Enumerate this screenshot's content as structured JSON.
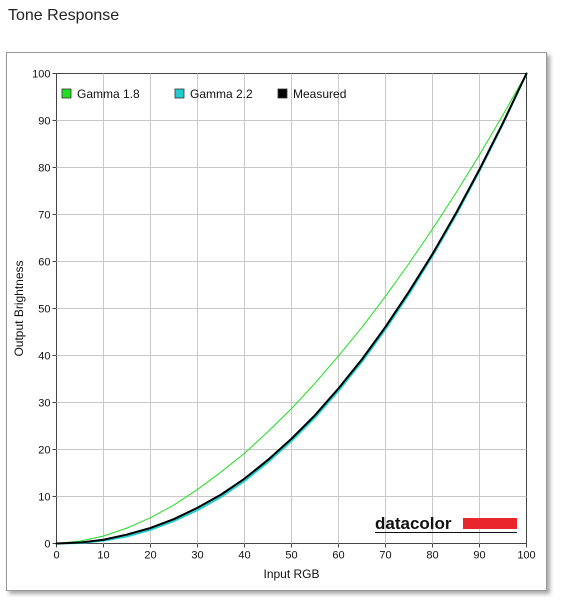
{
  "page": {
    "title": "Tone Response"
  },
  "brand": {
    "text": "datacolor",
    "bar_color": "#e8262c"
  },
  "chart_data": {
    "type": "line",
    "title": "",
    "xlabel": "Input RGB",
    "ylabel": "Output Brightness",
    "xlim": [
      0,
      100
    ],
    "ylim": [
      0,
      100
    ],
    "xticks": [
      0,
      10,
      20,
      30,
      40,
      50,
      60,
      70,
      80,
      90,
      100
    ],
    "yticks": [
      0,
      10,
      20,
      30,
      40,
      50,
      60,
      70,
      80,
      90,
      100
    ],
    "grid": true,
    "legend_position": "top-left",
    "x": [
      0,
      5,
      10,
      15,
      20,
      25,
      30,
      35,
      40,
      45,
      50,
      55,
      60,
      65,
      70,
      75,
      80,
      85,
      90,
      95,
      100
    ],
    "series": [
      {
        "name": "Gamma 1.8",
        "color": "#22dd22",
        "line_width": 1,
        "values": [
          0,
          0.5,
          1.6,
          3.3,
          5.5,
          8.2,
          11.5,
          15.2,
          19.2,
          23.8,
          28.7,
          34.1,
          39.9,
          46.0,
          52.6,
          59.6,
          66.9,
          74.6,
          82.7,
          91.2,
          100
        ]
      },
      {
        "name": "Gamma 2.2",
        "color": "#22cccc",
        "line_width": 2,
        "values": [
          0,
          0.1,
          0.6,
          1.5,
          2.9,
          4.8,
          7.1,
          9.9,
          13.3,
          17.3,
          21.8,
          26.8,
          32.5,
          38.7,
          45.6,
          53.1,
          61.2,
          69.9,
          79.3,
          89.3,
          100
        ]
      },
      {
        "name": "Measured",
        "color": "#000000",
        "line_width": 2,
        "values": [
          0,
          0.2,
          0.8,
          1.9,
          3.3,
          5.2,
          7.6,
          10.4,
          13.8,
          17.8,
          22.3,
          27.3,
          33.0,
          39.2,
          46.1,
          53.6,
          61.6,
          70.3,
          79.6,
          89.5,
          100
        ]
      }
    ]
  }
}
